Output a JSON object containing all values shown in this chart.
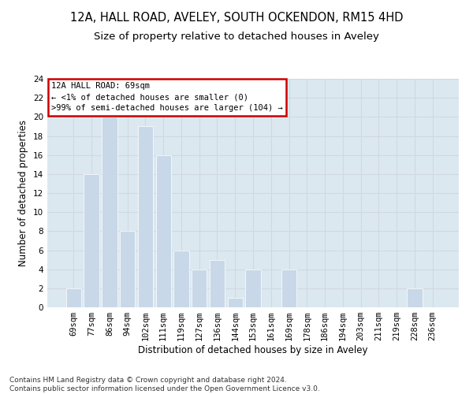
{
  "title1": "12A, HALL ROAD, AVELEY, SOUTH OCKENDON, RM15 4HD",
  "title2": "Size of property relative to detached houses in Aveley",
  "xlabel": "Distribution of detached houses by size in Aveley",
  "ylabel": "Number of detached properties",
  "categories": [
    "69sqm",
    "77sqm",
    "86sqm",
    "94sqm",
    "102sqm",
    "111sqm",
    "119sqm",
    "127sqm",
    "136sqm",
    "144sqm",
    "153sqm",
    "161sqm",
    "169sqm",
    "178sqm",
    "186sqm",
    "194sqm",
    "203sqm",
    "211sqm",
    "219sqm",
    "228sqm",
    "236sqm"
  ],
  "values": [
    2,
    14,
    20,
    8,
    19,
    16,
    6,
    4,
    5,
    1,
    4,
    0,
    4,
    0,
    0,
    0,
    0,
    0,
    0,
    2,
    0
  ],
  "bar_color": "#c8d8e8",
  "annotation_box_text": "12A HALL ROAD: 69sqm\n← <1% of detached houses are smaller (0)\n>99% of semi-detached houses are larger (104) →",
  "annotation_box_color": "#ffffff",
  "annotation_box_edge_color": "#cc0000",
  "grid_color": "#d0d8e0",
  "background_color": "#dce8f0",
  "ylim": [
    0,
    24
  ],
  "yticks": [
    0,
    2,
    4,
    6,
    8,
    10,
    12,
    14,
    16,
    18,
    20,
    22,
    24
  ],
  "footnote": "Contains HM Land Registry data © Crown copyright and database right 2024.\nContains public sector information licensed under the Open Government Licence v3.0.",
  "title1_fontsize": 10.5,
  "title2_fontsize": 9.5,
  "xlabel_fontsize": 8.5,
  "ylabel_fontsize": 8.5,
  "tick_fontsize": 7.5,
  "footnote_fontsize": 6.5,
  "annot_fontsize": 7.5
}
